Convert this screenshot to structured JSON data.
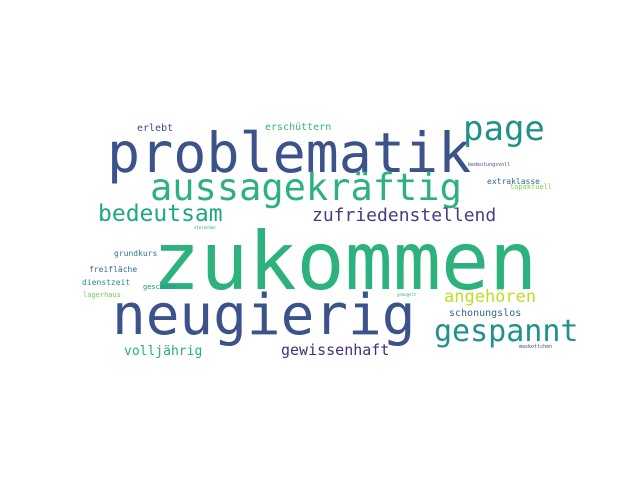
{
  "word_cloud": {
    "words": {
      "zukommen": {
        "text": "zukommen",
        "color": "#2db27d"
      },
      "problematik": {
        "text": "problematik",
        "color": "#3b528b"
      },
      "neugierig": {
        "text": "neugierig",
        "color": "#3b528b"
      },
      "aussagekraeftig": {
        "text": "aussagekräftig",
        "color": "#2db27d"
      },
      "page": {
        "text": "page",
        "color": "#21918c"
      },
      "gespannt": {
        "text": "gespannt",
        "color": "#21918c"
      },
      "bedeutsam": {
        "text": "bedeutsam",
        "color": "#21a685"
      },
      "zufriedenstellend": {
        "text": "zufriedenstellend",
        "color": "#433e85"
      },
      "angehoeren": {
        "text": "angehören",
        "color": "#bddf26"
      },
      "gewissenhaft": {
        "text": "gewissenhaft",
        "color": "#472d7b"
      },
      "volljaehrig": {
        "text": "volljährig",
        "color": "#29af7f"
      },
      "schonungslos": {
        "text": "schonungslos",
        "color": "#31688e"
      },
      "erschuettern": {
        "text": "erschüttern",
        "color": "#35b779"
      },
      "erlebt": {
        "text": "erlebt",
        "color": "#3e4989"
      },
      "grundkurs": {
        "text": "grundkurs",
        "color": "#2a788e"
      },
      "freiflaeche": {
        "text": "freifläche",
        "color": "#31688e"
      },
      "dienstzeit": {
        "text": "dienstzeit",
        "color": "#21918c"
      },
      "gescannt": {
        "text": "gescannt",
        "color": "#21918c"
      },
      "lagerhaus": {
        "text": "lagerhaus",
        "color": "#6ece58"
      },
      "extraklasse": {
        "text": "extraklasse",
        "color": "#31688e"
      },
      "topaktuell": {
        "text": "topaktuell",
        "color": "#7ad151"
      },
      "bedeutungsvoll": {
        "text": "bedeutungsvoll",
        "color": "#3b528b"
      },
      "maskottchen": {
        "text": "maskottchen",
        "color": "#3e4989"
      },
      "sternchen": {
        "text": "sternchen",
        "color": "#1fa187"
      },
      "gemogelt": {
        "text": "gemogelt",
        "color": "#35b779"
      }
    }
  }
}
